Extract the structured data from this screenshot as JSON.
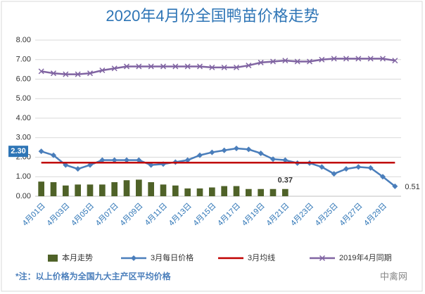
{
  "chart_data": {
    "type": "combo",
    "title": "2020年4月份全国鸭苗价格走势",
    "categories": [
      "4月01日",
      null,
      "4月03日",
      null,
      "4月05日",
      null,
      "4月07日",
      null,
      "4月09日",
      null,
      "4月11日",
      null,
      "4月13日",
      null,
      "4月15日",
      null,
      "4月17日",
      null,
      "4月19日",
      null,
      "4月21日",
      null,
      "4月23日",
      null,
      "4月25日",
      null,
      "4月27日",
      null,
      "4月29日",
      null
    ],
    "ylim": [
      0,
      8
    ],
    "yticks": [
      {
        "value": 0,
        "label": "0.00"
      },
      {
        "value": 1,
        "label": "1.00"
      },
      {
        "value": 2,
        "label": "2.00"
      },
      {
        "value": 3,
        "label": "3.00"
      },
      {
        "value": 4,
        "label": "4.00"
      },
      {
        "value": 5,
        "label": "5.00"
      },
      {
        "value": 6,
        "label": "6.00"
      },
      {
        "value": 7,
        "label": "7.00"
      },
      {
        "value": 8,
        "label": "8.00"
      }
    ],
    "grid": true,
    "legend": "bottom",
    "series": [
      {
        "name": "本月走势",
        "type": "bar",
        "color": "#4f6228",
        "values": [
          0.75,
          0.72,
          0.55,
          0.6,
          0.6,
          0.6,
          0.72,
          0.82,
          0.85,
          0.72,
          0.6,
          0.55,
          0.4,
          0.4,
          0.45,
          0.52,
          0.52,
          0.37,
          0.37,
          0.37,
          0.37,
          null,
          null,
          null,
          null,
          null,
          null,
          null,
          null,
          null
        ],
        "value_labels": [
          null,
          null,
          null,
          null,
          null,
          null,
          null,
          null,
          null,
          null,
          null,
          null,
          null,
          null,
          null,
          null,
          null,
          null,
          null,
          null,
          "0.37",
          null,
          null,
          null,
          null,
          null,
          null,
          null,
          null,
          null
        ]
      },
      {
        "name": "3月每日价格",
        "type": "line",
        "marker": "diamond",
        "color": "#4a7ebb",
        "values": [
          2.3,
          2.1,
          1.6,
          1.4,
          1.6,
          1.85,
          1.85,
          1.85,
          1.85,
          1.6,
          1.65,
          1.75,
          1.85,
          2.1,
          2.25,
          2.35,
          2.45,
          2.4,
          2.2,
          1.9,
          1.85,
          1.7,
          1.7,
          1.5,
          1.15,
          1.4,
          1.5,
          1.45,
          1.0,
          0.51
        ],
        "value_labels": [
          "2.30",
          null,
          null,
          null,
          null,
          null,
          null,
          null,
          null,
          null,
          null,
          null,
          null,
          null,
          null,
          null,
          null,
          null,
          null,
          null,
          null,
          null,
          null,
          null,
          null,
          null,
          null,
          null,
          null,
          "0.51"
        ]
      },
      {
        "name": "3月均线",
        "type": "line",
        "marker": "none",
        "color": "#c00000",
        "values": [
          1.72,
          1.72,
          1.72,
          1.72,
          1.72,
          1.72,
          1.72,
          1.72,
          1.72,
          1.72,
          1.72,
          1.72,
          1.72,
          1.72,
          1.72,
          1.72,
          1.72,
          1.72,
          1.72,
          1.72,
          1.72,
          1.72,
          1.72,
          1.72,
          1.72,
          1.72,
          1.72,
          1.72,
          1.72,
          1.72
        ]
      },
      {
        "name": "2019年4月同期",
        "type": "line",
        "marker": "x",
        "color": "#8064a2",
        "values": [
          6.4,
          6.3,
          6.25,
          6.25,
          6.3,
          6.45,
          6.55,
          6.65,
          6.65,
          6.65,
          6.65,
          6.65,
          6.65,
          6.65,
          6.6,
          6.6,
          6.6,
          6.7,
          6.85,
          6.9,
          6.95,
          6.9,
          6.9,
          7.0,
          7.05,
          7.05,
          7.05,
          7.05,
          7.05,
          6.95
        ]
      }
    ],
    "footnote": "*注：以上价格为全国九大主产区平均价格",
    "watermark": "中禽网"
  }
}
